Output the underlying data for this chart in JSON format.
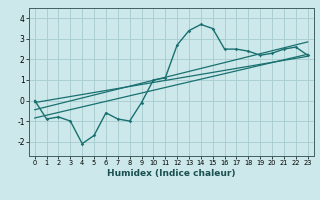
{
  "title": "",
  "xlabel": "Humidex (Indice chaleur)",
  "ylabel": "",
  "bg_color": "#cce8ea",
  "grid_color": "#aacfd2",
  "line_color": "#1a7070",
  "xlim": [
    -0.5,
    23.5
  ],
  "ylim": [
    -2.7,
    4.5
  ],
  "yticks": [
    -2,
    -1,
    0,
    1,
    2,
    3,
    4
  ],
  "xticks": [
    0,
    1,
    2,
    3,
    4,
    5,
    6,
    7,
    8,
    9,
    10,
    11,
    12,
    13,
    14,
    15,
    16,
    17,
    18,
    19,
    20,
    21,
    22,
    23
  ],
  "main_x": [
    0,
    1,
    2,
    3,
    4,
    5,
    6,
    7,
    8,
    9,
    10,
    11,
    12,
    13,
    14,
    15,
    16,
    17,
    18,
    19,
    20,
    21,
    22,
    23
  ],
  "main_y": [
    0.0,
    -0.9,
    -0.8,
    -1.0,
    -2.1,
    -1.7,
    -0.6,
    -0.9,
    -1.0,
    -0.1,
    1.0,
    1.1,
    2.7,
    3.4,
    3.7,
    3.5,
    2.5,
    2.5,
    2.4,
    2.2,
    2.3,
    2.5,
    2.6,
    2.2
  ],
  "line1_x": [
    0,
    23
  ],
  "line1_y": [
    -0.85,
    2.25
  ],
  "line2_x": [
    0,
    23
  ],
  "line2_y": [
    -0.45,
    2.85
  ],
  "line3_x": [
    0,
    23
  ],
  "line3_y": [
    -0.1,
    2.15
  ]
}
